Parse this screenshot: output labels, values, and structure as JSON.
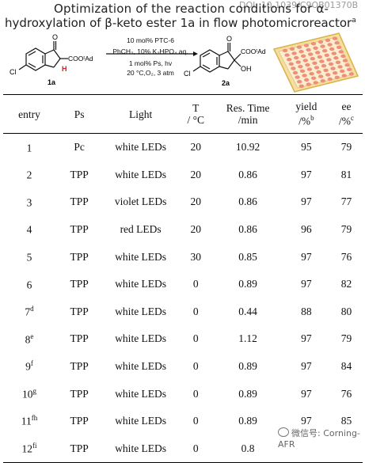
{
  "title": {
    "line1": "Optimization of the reaction conditions for α-",
    "line2": "hydroxylation of β-keto ester 1a in flow photomicroreactor",
    "line2_sup": "a",
    "doi": "DOI: 10.1039/C9OB01370B"
  },
  "scheme": {
    "reactant_label": "1a",
    "product_label": "2a",
    "reactant_ester": "COOᵗAd",
    "product_ester": "COOᵗAd",
    "cl": "Cl",
    "o": "O",
    "h": "H",
    "oh": "OH",
    "conditions": [
      "10 mol% PTC-6",
      "PhCH₃, 10% K₂HPO₄ aq.",
      "1 mol% Ps, hv",
      "20 °C,O₂, 3 atm"
    ]
  },
  "table": {
    "headers": [
      {
        "main": "entry",
        "sub": ""
      },
      {
        "main": "Ps",
        "sub": ""
      },
      {
        "main": "Light",
        "sub": ""
      },
      {
        "main": "T",
        "sub": "/ °C"
      },
      {
        "main": "Res. Time",
        "sub": "/min"
      },
      {
        "main": "yield",
        "sub": "/%",
        "sup": "b"
      },
      {
        "main": "ee",
        "sub": "/%",
        "sup": "c"
      }
    ],
    "rows": [
      {
        "entry": "1",
        "sup": "",
        "ps": "Pc",
        "light": "white  LEDs",
        "t": "20",
        "time": "10.92",
        "yield": "95",
        "ee": "79"
      },
      {
        "entry": "2",
        "sup": "",
        "ps": "TPP",
        "light": "white LEDs",
        "t": "20",
        "time": "0.86",
        "yield": "97",
        "ee": "81"
      },
      {
        "entry": "3",
        "sup": "",
        "ps": "TPP",
        "light": "violet LEDs",
        "t": "20",
        "time": "0.86",
        "yield": "97",
        "ee": "77"
      },
      {
        "entry": "4",
        "sup": "",
        "ps": "TPP",
        "light": "red LEDs",
        "t": "20",
        "time": "0.86",
        "yield": "96",
        "ee": "79"
      },
      {
        "entry": "5",
        "sup": "",
        "ps": "TPP",
        "light": "white LEDs",
        "t": "30",
        "time": "0.85",
        "yield": "97",
        "ee": "76"
      },
      {
        "entry": "6",
        "sup": "",
        "ps": "TPP",
        "light": "white LEDs",
        "t": "0",
        "time": "0.89",
        "yield": "97",
        "ee": "82"
      },
      {
        "entry": "7",
        "sup": "d",
        "ps": "TPP",
        "light": "white LEDs",
        "t": "0",
        "time": "0.44",
        "yield": "88",
        "ee": "80"
      },
      {
        "entry": "8",
        "sup": "e",
        "ps": "TPP",
        "light": "white LEDs",
        "t": "0",
        "time": "1.12",
        "yield": "97",
        "ee": "79"
      },
      {
        "entry": "9",
        "sup": "f",
        "ps": "TPP",
        "light": "white LEDs",
        "t": "0",
        "time": "0.89",
        "yield": "97",
        "ee": "84"
      },
      {
        "entry": "10",
        "sup": "g",
        "ps": "TPP",
        "light": "white LEDs",
        "t": "0",
        "time": "0.89",
        "yield": "97",
        "ee": "76"
      },
      {
        "entry": "11",
        "sup": "fh",
        "ps": "TPP",
        "light": "white LEDs",
        "t": "0",
        "time": "0.89",
        "yield": "97",
        "ee": "85"
      },
      {
        "entry": "12",
        "sup": "fi",
        "ps": "TPP",
        "light": "white LEDs",
        "t": "0",
        "time": "0.8",
        "yield": "",
        "ee": ""
      }
    ]
  },
  "watermark": "微信号: Corning-AFR",
  "colors": {
    "reactor_frame": "#d9b24a",
    "reactor_channel": "#ee8f7a",
    "bond": "#111111",
    "h_atom": "#d42020"
  }
}
